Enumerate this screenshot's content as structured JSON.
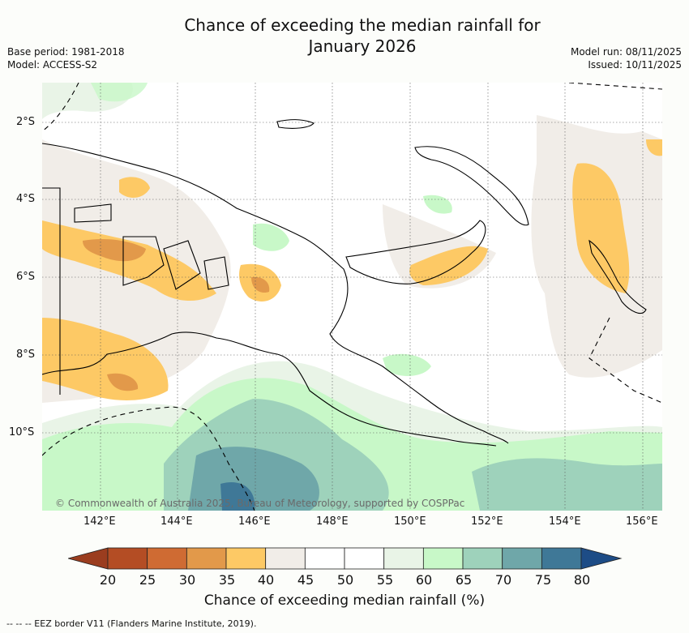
{
  "header": {
    "title_line1": "Chance of exceeding the median rainfall for",
    "title_line2": "January 2026",
    "base_period": "Base period: 1981-2018",
    "model": "Model: ACCESS-S2",
    "model_run": "Model run: 08/11/2025",
    "issued": "Issued: 10/11/2025"
  },
  "map": {
    "lat_labels": [
      "2°S",
      "4°S",
      "6°S",
      "8°S",
      "10°S"
    ],
    "lon_labels": [
      "142°E",
      "144°E",
      "146°E",
      "148°E",
      "150°E",
      "152°E",
      "154°E",
      "156°E"
    ],
    "copyright": "© Commonwealth of Australia 2025, Bureau of Meteorology, supported by COSPPac"
  },
  "colorbar": {
    "labels": [
      "20",
      "25",
      "30",
      "35",
      "40",
      "45",
      "50",
      "55",
      "60",
      "65",
      "70",
      "75",
      "80"
    ],
    "colors": [
      "#9b3d1f",
      "#b44d24",
      "#cf6b33",
      "#e2994a",
      "#fdc965",
      "#f1ede8",
      "#ffffff",
      "#ffffff",
      "#e9f4e7",
      "#c8f8c8",
      "#9ed2bb",
      "#6fa7a9",
      "#3f7897",
      "#1d4c86"
    ],
    "title": "Chance of exceeding median rainfall (%)"
  },
  "footer": {
    "eez_note": "--  --  -- EEZ border V11 (Flanders Marine Institute, 2019)."
  }
}
